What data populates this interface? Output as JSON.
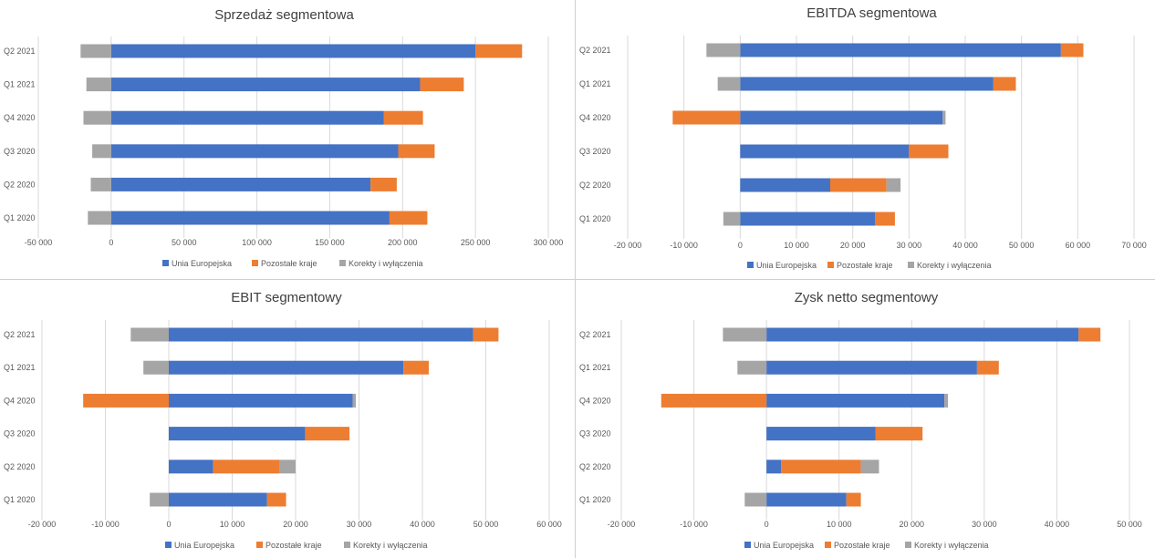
{
  "legend_colors": {
    "ue": "#4472C4",
    "other": "#ED7D31",
    "adj": "#A5A5A5"
  },
  "chart_data": [
    {
      "type": "bar",
      "stacked": true,
      "orientation": "horizontal",
      "title": "Sprzedaż segmentowa",
      "categories": [
        "Q1 2020",
        "Q2 2020",
        "Q3 2020",
        "Q4 2020",
        "Q1 2021",
        "Q2 2021"
      ],
      "series": [
        {
          "name": "Unia Europejska",
          "values": [
            191000,
            178000,
            197000,
            187000,
            212000,
            250000
          ]
        },
        {
          "name": "Pozostałe kraje",
          "values": [
            26000,
            18000,
            25000,
            27000,
            30000,
            32000
          ]
        },
        {
          "name": "Korekty i wyłączenia",
          "values": [
            -16000,
            -14000,
            -13000,
            -19000,
            -17000,
            -21000
          ]
        }
      ],
      "xlim": [
        -50000,
        300000
      ],
      "xticks": [
        -50000,
        0,
        50000,
        100000,
        150000,
        200000,
        250000,
        300000
      ],
      "xtick_labels": [
        "-50 000",
        "0",
        "50 000",
        "100 000",
        "150 000",
        "200 000",
        "250 000",
        "300 000"
      ],
      "grid": true,
      "legend": "bottom"
    },
    {
      "type": "bar",
      "stacked": true,
      "orientation": "horizontal",
      "title": "EBITDA segmentowa",
      "categories": [
        "Q1 2020",
        "Q2 2020",
        "Q3 2020",
        "Q4 2020",
        "Q1 2021",
        "Q2 2021"
      ],
      "series": [
        {
          "name": "Unia Europejska",
          "values": [
            24000,
            16000,
            30000,
            36000,
            45000,
            57000
          ]
        },
        {
          "name": "Pozostałe kraje",
          "values": [
            3500,
            10000,
            7000,
            -12000,
            4000,
            4000
          ]
        },
        {
          "name": "Korekty i wyłączenia",
          "values": [
            -3000,
            2500,
            0,
            500,
            -4000,
            -6000
          ]
        }
      ],
      "xlim": [
        -20000,
        70000
      ],
      "xticks": [
        -20000,
        -10000,
        0,
        10000,
        20000,
        30000,
        40000,
        50000,
        60000,
        70000
      ],
      "xtick_labels": [
        "-20 000",
        "-10 000",
        "0",
        "10 000",
        "20 000",
        "30 000",
        "40 000",
        "50 000",
        "60 000",
        "70 000"
      ],
      "grid": true,
      "legend": "bottom"
    },
    {
      "type": "bar",
      "stacked": true,
      "orientation": "horizontal",
      "title": "EBIT segmentowy",
      "categories": [
        "Q1 2020",
        "Q2 2020",
        "Q3 2020",
        "Q4 2020",
        "Q1 2021",
        "Q2 2021"
      ],
      "series": [
        {
          "name": "Unia Europejska",
          "values": [
            15500,
            7000,
            21500,
            29000,
            37000,
            48000
          ]
        },
        {
          "name": "Pozostałe kraje",
          "values": [
            3000,
            10500,
            7000,
            -13500,
            4000,
            4000
          ]
        },
        {
          "name": "Korekty i wyłączenia",
          "values": [
            -3000,
            2500,
            0,
            500,
            -4000,
            -6000
          ]
        }
      ],
      "xlim": [
        -20000,
        60000
      ],
      "xticks": [
        -20000,
        -10000,
        0,
        10000,
        20000,
        30000,
        40000,
        50000,
        60000
      ],
      "xtick_labels": [
        "-20 000",
        "-10 000",
        "0",
        "10 000",
        "20 000",
        "30 000",
        "40 000",
        "50 000",
        "60 000"
      ],
      "grid": true,
      "legend": "bottom"
    },
    {
      "type": "bar",
      "stacked": true,
      "orientation": "horizontal",
      "title": "Zysk netto segmentowy",
      "categories": [
        "Q1 2020",
        "Q2 2020",
        "Q3 2020",
        "Q4 2020",
        "Q1 2021",
        "Q2 2021"
      ],
      "series": [
        {
          "name": "Unia Europejska",
          "values": [
            11000,
            2000,
            15000,
            24500,
            29000,
            43000
          ]
        },
        {
          "name": "Pozostałe kraje",
          "values": [
            2000,
            11000,
            6500,
            -14500,
            3000,
            3000
          ]
        },
        {
          "name": "Korekty i wyłączenia",
          "values": [
            -3000,
            2500,
            0,
            500,
            -4000,
            -6000
          ]
        }
      ],
      "xlim": [
        -20000,
        50000
      ],
      "xticks": [
        -20000,
        -10000,
        0,
        10000,
        20000,
        30000,
        40000,
        50000
      ],
      "xtick_labels": [
        "-20 000",
        "-10 000",
        "0",
        "10 000",
        "20 000",
        "30 000",
        "40 000",
        "50 000"
      ],
      "grid": true,
      "legend": "bottom"
    }
  ]
}
